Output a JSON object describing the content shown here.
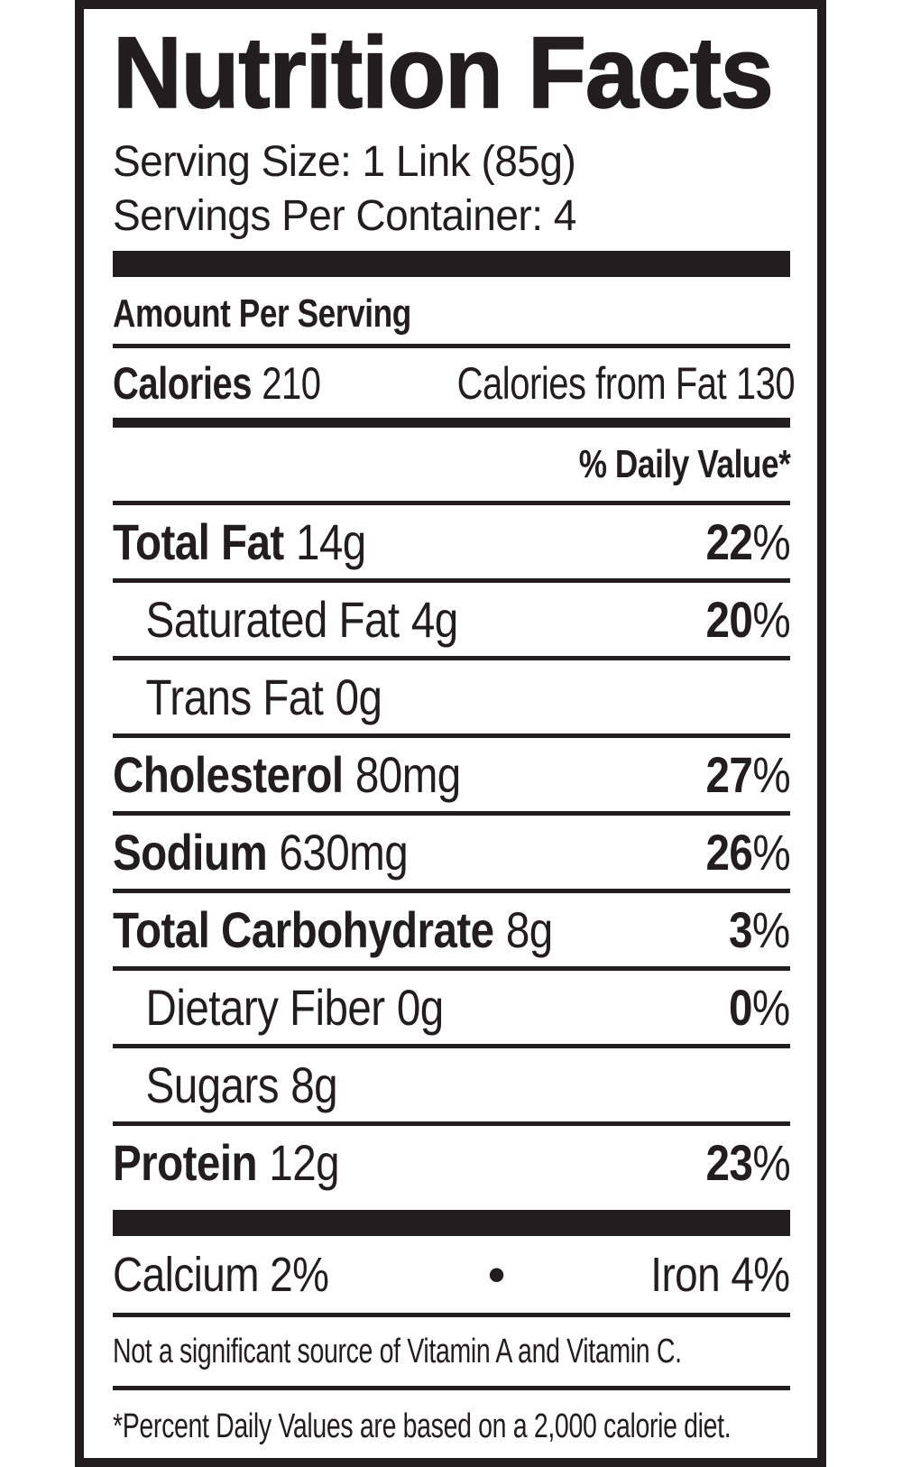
{
  "nutrition_label": {
    "title": "Nutrition Facts",
    "serving_size": "Serving Size: 1 Link (85g)",
    "servings_per_container": "Servings Per Container: 4",
    "amount_per_serving": "Amount Per Serving",
    "calories": {
      "label": "Calories",
      "value": "210",
      "from_fat": "Calories from Fat 130"
    },
    "daily_value_header": "% Daily Value*",
    "nutrients": [
      {
        "name": "Total Fat",
        "amount": "14g",
        "dv": "22",
        "pct": "%"
      },
      {
        "name": "Saturated Fat",
        "amount": "4g",
        "dv": "20",
        "pct": "%"
      },
      {
        "name": "Trans Fat",
        "amount": "0g",
        "dv": "",
        "pct": ""
      },
      {
        "name": "Cholesterol",
        "amount": "80mg",
        "dv": "27",
        "pct": "%"
      },
      {
        "name": "Sodium",
        "amount": "630mg",
        "dv": "26",
        "pct": "%"
      },
      {
        "name": "Total Carbohydrate",
        "amount": "8g",
        "dv": "3",
        "pct": "%"
      },
      {
        "name": "Dietary Fiber",
        "amount": "0g",
        "dv": "0",
        "pct": "%"
      },
      {
        "name": "Sugars",
        "amount": "8g",
        "dv": "",
        "pct": ""
      },
      {
        "name": "Protein",
        "amount": "12g",
        "dv": "23",
        "pct": "%"
      }
    ],
    "minerals": {
      "calcium": "Calcium 2%",
      "separator": "•",
      "iron": "Iron 4%"
    },
    "vitamin_note": "Not a significant source of Vitamin A and Vitamin C.",
    "footnote": "*Percent Daily Values are based on a 2,000 calorie diet.",
    "colors": {
      "ink": "#221e1f",
      "background": "#ffffff"
    }
  }
}
